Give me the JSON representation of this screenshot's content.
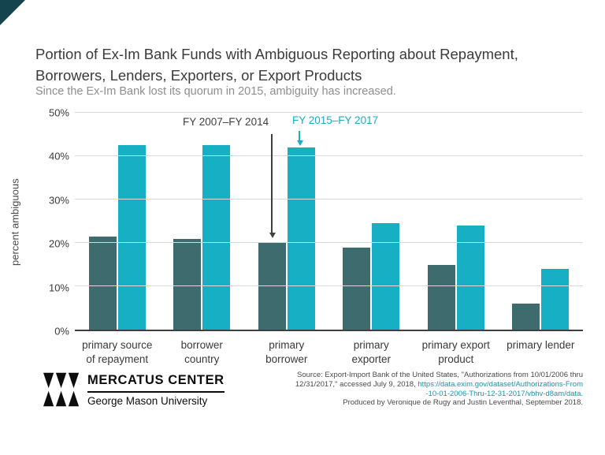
{
  "page": {
    "corner_accent_color": "#14454e"
  },
  "chart_data": {
    "type": "bar",
    "title": "Portion of Ex-Im Bank Funds with Ambiguous Reporting about Repayment,\nBorrowers, Lenders, Exporters, or Export Products",
    "subtitle": "Since the Ex-Im Bank lost its quorum in 2015, ambiguity has increased.",
    "ylabel": "percent ambiguous",
    "ylim": [
      0,
      50
    ],
    "yticks": [
      "0%",
      "10%",
      "20%",
      "30%",
      "40%",
      "50%"
    ],
    "grid": true,
    "legend_position": "annotation labels with arrows above primary borrower bars",
    "categories": [
      "primary source of repayment",
      "borrower country",
      "primary borrower",
      "primary exporter",
      "primary export product",
      "primary lender"
    ],
    "series": [
      {
        "name": "FY 2007–FY 2014",
        "color": "#3e6c6e",
        "values": [
          21.5,
          21,
          20,
          19,
          15,
          6
        ]
      },
      {
        "name": "FY 2015–FY 2017",
        "color": "#17afc4",
        "values": [
          42.5,
          42.5,
          42,
          24.5,
          24,
          14
        ]
      }
    ],
    "annotations": [
      {
        "text": "FY 2007–FY 2014",
        "color": "#3f3f3f",
        "points_to": "primary borrower dark bar"
      },
      {
        "text": "FY 2015–FY 2017",
        "color": "#17afc4",
        "points_to": "primary borrower teal bar"
      }
    ]
  },
  "footer": {
    "logo": {
      "title": "MERCATUS CENTER",
      "subtitle": "George Mason University"
    },
    "source": {
      "line1": "Source: Export-Import Bank of the United States, \"Authorizations from 10/01/2006 thru",
      "line2_text": "12/31/2017,\" accessed July 9, 2018, ",
      "line2_link": "https://data.exim.gov/dataset/Authorizations-From",
      "line3_link": "-10-01-2006-Thru-12-31-2017/vbhv-d8am/data.",
      "line4": "Produced by Veronique de Rugy and Justin Leventhal, September 2018.",
      "link_color": "#1796ad"
    }
  }
}
